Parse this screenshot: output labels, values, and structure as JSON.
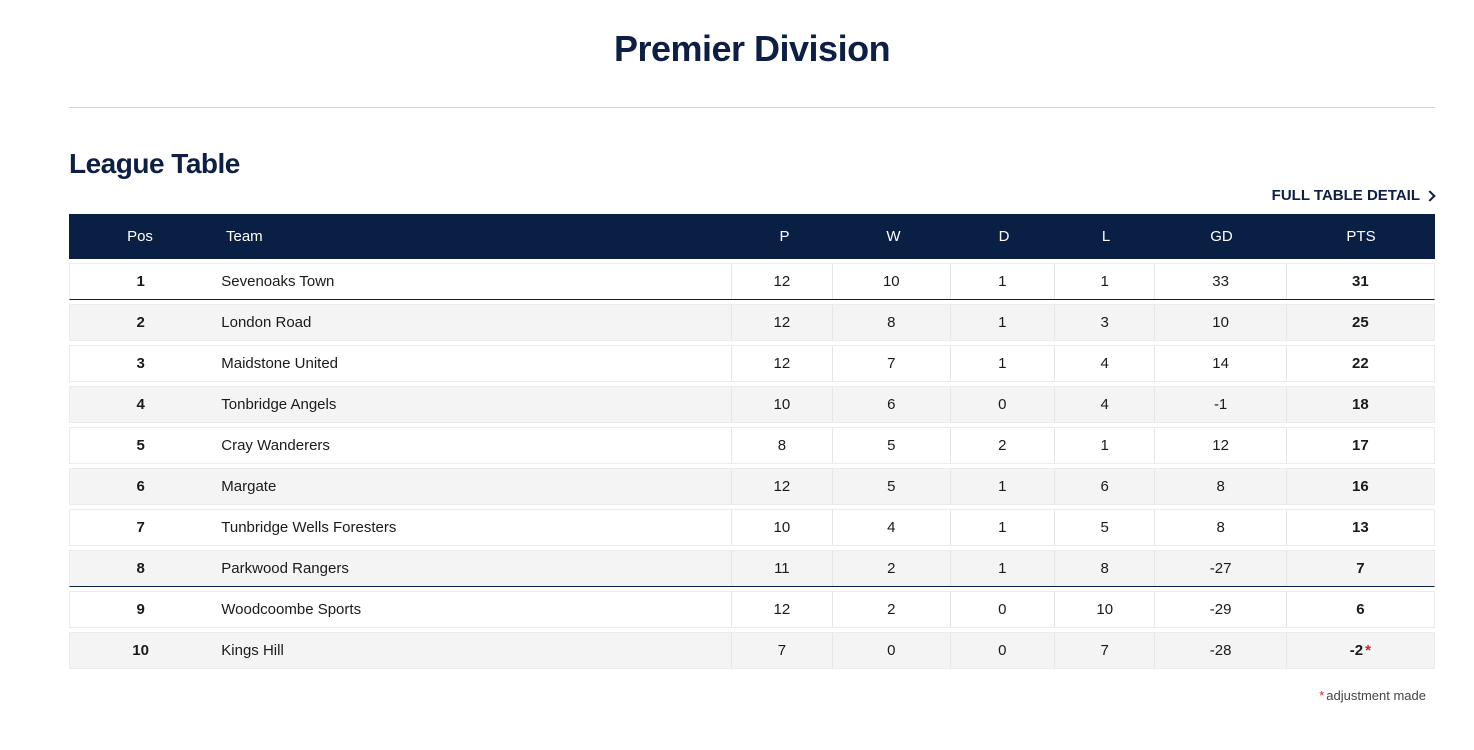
{
  "page": {
    "title": "Premier Division",
    "section_title": "League Table",
    "full_table_link": "FULL TABLE DETAIL"
  },
  "table": {
    "headers": {
      "pos": "Pos",
      "team": "Team",
      "p": "P",
      "w": "W",
      "d": "D",
      "l": "L",
      "gd": "GD",
      "pts": "PTS"
    },
    "rows": [
      {
        "pos": "1",
        "team": "Sevenoaks Town",
        "p": "12",
        "w": "10",
        "d": "1",
        "l": "1",
        "gd": "33",
        "pts": "31"
      },
      {
        "pos": "2",
        "team": "London Road",
        "p": "12",
        "w": "8",
        "d": "1",
        "l": "3",
        "gd": "10",
        "pts": "25"
      },
      {
        "pos": "3",
        "team": "Maidstone United",
        "p": "12",
        "w": "7",
        "d": "1",
        "l": "4",
        "gd": "14",
        "pts": "22"
      },
      {
        "pos": "4",
        "team": "Tonbridge Angels",
        "p": "10",
        "w": "6",
        "d": "0",
        "l": "4",
        "gd": "-1",
        "pts": "18"
      },
      {
        "pos": "5",
        "team": "Cray Wanderers",
        "p": "8",
        "w": "5",
        "d": "2",
        "l": "1",
        "gd": "12",
        "pts": "17"
      },
      {
        "pos": "6",
        "team": "Margate",
        "p": "12",
        "w": "5",
        "d": "1",
        "l": "6",
        "gd": "8",
        "pts": "16"
      },
      {
        "pos": "7",
        "team": "Tunbridge Wells Foresters",
        "p": "10",
        "w": "4",
        "d": "1",
        "l": "5",
        "gd": "8",
        "pts": "13"
      },
      {
        "pos": "8",
        "team": "Parkwood Rangers",
        "p": "11",
        "w": "2",
        "d": "1",
        "l": "8",
        "gd": "-27",
        "pts": "7"
      },
      {
        "pos": "9",
        "team": "Woodcoombe Sports",
        "p": "12",
        "w": "2",
        "d": "0",
        "l": "10",
        "gd": "-29",
        "pts": "6"
      },
      {
        "pos": "10",
        "team": "Kings Hill",
        "p": "7",
        "w": "0",
        "d": "0",
        "l": "7",
        "gd": "-28",
        "pts": "-2",
        "adjusted": "*"
      }
    ]
  },
  "footnote": {
    "star": "*",
    "text": "adjustment made"
  },
  "colors": {
    "navy": "#0a1f44",
    "title": "#0d1f44",
    "row_alt": "#f4f4f4",
    "asterisk": "#d41f26"
  }
}
